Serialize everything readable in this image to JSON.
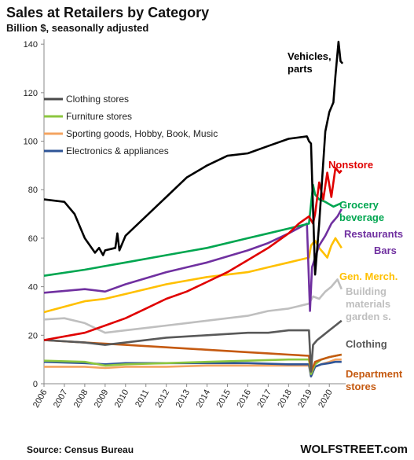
{
  "chart_data": {
    "type": "line",
    "title": "Sales at Retailers by Category",
    "subtitle": "Billion $, seasonally adjusted",
    "source": "Source: Census Bureau",
    "brand": "WOLFSTREET.com",
    "xlabel": "",
    "ylabel": "",
    "xlim": [
      2006,
      2020.8
    ],
    "ylim": [
      0,
      142
    ],
    "x_ticks": [
      "2006",
      "2007",
      "2008",
      "2009",
      "2010",
      "2011",
      "2012",
      "2013",
      "2014",
      "2015",
      "2016",
      "2017",
      "2018",
      "2019",
      "2020"
    ],
    "y_ticks": [
      "0",
      "20",
      "40",
      "60",
      "80",
      "100",
      "120",
      "140"
    ],
    "grid": false,
    "legend_position": "left-top",
    "legend": [
      {
        "label": "Clothing stores",
        "color": "#4a4a4a"
      },
      {
        "label": "Furniture stores",
        "color": "#8cc63f"
      },
      {
        "label": "Sporting goods, Hobby, Book,  Music",
        "color": "#f4a460"
      },
      {
        "label": "Electronics & appliances",
        "color": "#2f5597"
      }
    ],
    "series": [
      {
        "name": "Vehicles, parts",
        "color": "#000000",
        "x": [
          2006,
          2007,
          2007.5,
          2008,
          2008.5,
          2008.7,
          2008.9,
          2009,
          2009.5,
          2009.6,
          2009.7,
          2010,
          2011,
          2012,
          2013,
          2014,
          2015,
          2016,
          2017,
          2018,
          2018.9,
          2019.0,
          2019.1,
          2019.3,
          2019.5,
          2019.8,
          2020.0,
          2020.2,
          2020.3,
          2020.45,
          2020.55,
          2020.65
        ],
        "values": [
          76,
          75,
          70,
          60,
          54,
          56,
          53,
          55,
          56,
          62,
          55,
          61,
          69,
          77,
          85,
          90,
          94,
          95,
          98,
          101,
          102,
          100,
          99,
          45,
          66,
          104,
          112,
          116,
          127,
          141,
          133,
          132
        ]
      },
      {
        "name": "Nonstore",
        "color": "#e00000",
        "x": [
          2006,
          2008,
          2009,
          2010,
          2011,
          2012,
          2013,
          2014,
          2015,
          2016,
          2017,
          2018,
          2018.5,
          2019,
          2019.2,
          2019.3,
          2019.5,
          2019.7,
          2019.9,
          2020.1,
          2020.3,
          2020.5,
          2020.6
        ],
        "values": [
          18,
          21,
          24,
          27,
          31,
          35,
          38,
          42,
          46,
          51,
          56,
          62,
          66,
          69,
          66,
          70,
          83,
          76,
          87,
          77,
          89,
          87,
          88
        ]
      },
      {
        "name": "Grocery beverage",
        "color": "#00a650",
        "x": [
          2006,
          2008,
          2010,
          2012,
          2014,
          2016,
          2017,
          2018,
          2019,
          2019.2,
          2019.3,
          2019.5,
          2019.8,
          2020.2,
          2020.6
        ],
        "values": [
          44.5,
          47,
          50,
          53,
          56,
          60,
          62,
          64,
          66,
          82,
          78,
          76,
          75,
          73,
          74.5
        ]
      },
      {
        "name": "Restaurants Bars",
        "color": "#7030a0",
        "x": [
          2006,
          2008,
          2009,
          2010,
          2012,
          2014,
          2016,
          2017,
          2018,
          2018.9,
          2019.05,
          2019.15,
          2019.3,
          2019.5,
          2019.8,
          2020.1,
          2020.4,
          2020.6
        ],
        "values": [
          37.5,
          39,
          38,
          41,
          46,
          50,
          55,
          58,
          62,
          66,
          30,
          48,
          52,
          57,
          61,
          66,
          69,
          72
        ]
      },
      {
        "name": "Gen. Merch.",
        "color": "#ffc000",
        "x": [
          2006,
          2008,
          2009,
          2010,
          2012,
          2014,
          2016,
          2017,
          2018,
          2019,
          2019.1,
          2019.3,
          2019.5,
          2019.7,
          2019.9,
          2020.1,
          2020.3,
          2020.6
        ],
        "values": [
          29.5,
          34,
          35,
          37,
          41,
          44,
          46,
          48,
          50,
          52,
          57,
          59,
          56,
          54,
          52,
          57,
          60,
          56
        ]
      },
      {
        "name": "Building materials garden s.",
        "color": "#bfbfbf",
        "x": [
          2006,
          2007,
          2008,
          2009,
          2010,
          2011,
          2012,
          2013,
          2014,
          2015,
          2016,
          2017,
          2018,
          2019,
          2019.2,
          2019.5,
          2019.8,
          2020.1,
          2020.4,
          2020.6
        ],
        "values": [
          26.5,
          27,
          25,
          21,
          22,
          23,
          24,
          25,
          26,
          27,
          28,
          30,
          31,
          33,
          36,
          35,
          38,
          40,
          43,
          39
        ]
      },
      {
        "name": "Clothing",
        "color": "#595959",
        "x": [
          2006,
          2008,
          2009,
          2010,
          2012,
          2014,
          2016,
          2017,
          2018,
          2019,
          2019.1,
          2019.2,
          2019.4,
          2019.7,
          2020,
          2020.3,
          2020.6
        ],
        "values": [
          18,
          17,
          16,
          17,
          19,
          20,
          21,
          21,
          22,
          22,
          5,
          16,
          18,
          20,
          22,
          24,
          26
        ]
      },
      {
        "name": "Department stores",
        "color": "#c55a11",
        "x": [
          2006,
          2008,
          2010,
          2012,
          2014,
          2016,
          2017,
          2018,
          2019,
          2019.1,
          2019.3,
          2019.6,
          2020,
          2020.3,
          2020.6
        ],
        "values": [
          18,
          17,
          16,
          15,
          14,
          13,
          12.5,
          12,
          11.5,
          5,
          9,
          10,
          11,
          11.5,
          12
        ]
      },
      {
        "name": "Furniture stores",
        "color": "#8cc63f",
        "x": [
          2006,
          2008,
          2009,
          2010,
          2012,
          2014,
          2016,
          2018,
          2019,
          2019.1,
          2019.3,
          2019.6,
          2020,
          2020.3,
          2020.6
        ],
        "values": [
          9.5,
          9,
          7.5,
          8,
          8.5,
          9,
          9.5,
          10,
          10,
          4,
          8,
          10,
          11,
          11.5,
          12
        ]
      },
      {
        "name": "Electronics & appliances",
        "color": "#2f5597",
        "x": [
          2006,
          2008,
          2009,
          2010,
          2012,
          2014,
          2016,
          2018,
          2019,
          2019.1,
          2019.3,
          2019.6,
          2020,
          2020.3,
          2020.6
        ],
        "values": [
          9,
          8.5,
          8,
          8.5,
          8.5,
          8.5,
          8.5,
          8,
          8,
          3,
          7,
          8,
          8.5,
          9,
          9
        ]
      },
      {
        "name": "Sporting goods, Hobby, Book, Music",
        "color": "#f4a460",
        "x": [
          2006,
          2008,
          2009,
          2010,
          2012,
          2014,
          2016,
          2018,
          2019,
          2019.1,
          2019.3,
          2019.6,
          2020,
          2020.3,
          2020.6
        ],
        "values": [
          7,
          7,
          6.5,
          7,
          7,
          7.5,
          7.5,
          7.5,
          7.5,
          3,
          7,
          8,
          9,
          10,
          10
        ]
      }
    ],
    "annotations": [
      {
        "lines": [
          "Vehicles,",
          "parts"
        ],
        "color": "#000000",
        "series": "Vehicles, parts"
      },
      {
        "lines": [
          "Nonstore"
        ],
        "color": "#e00000",
        "series": "Nonstore"
      },
      {
        "lines": [
          "Grocery",
          "beverage"
        ],
        "color": "#00a650",
        "series": "Grocery beverage"
      },
      {
        "lines": [
          "Restaurants"
        ],
        "color": "#7030a0",
        "series": "Restaurants Bars"
      },
      {
        "lines": [
          "Bars"
        ],
        "color": "#7030a0",
        "series": "Restaurants Bars"
      },
      {
        "lines": [
          "Gen. Merch."
        ],
        "color": "#ffc000",
        "series": "Gen. Merch."
      },
      {
        "lines": [
          "Building",
          "materials",
          "garden s."
        ],
        "color": "#bfbfbf",
        "series": "Building materials garden s."
      },
      {
        "lines": [
          "Clothing"
        ],
        "color": "#595959",
        "series": "Clothing"
      },
      {
        "lines": [
          "Department",
          "stores"
        ],
        "color": "#c55a11",
        "series": "Department stores"
      }
    ]
  }
}
